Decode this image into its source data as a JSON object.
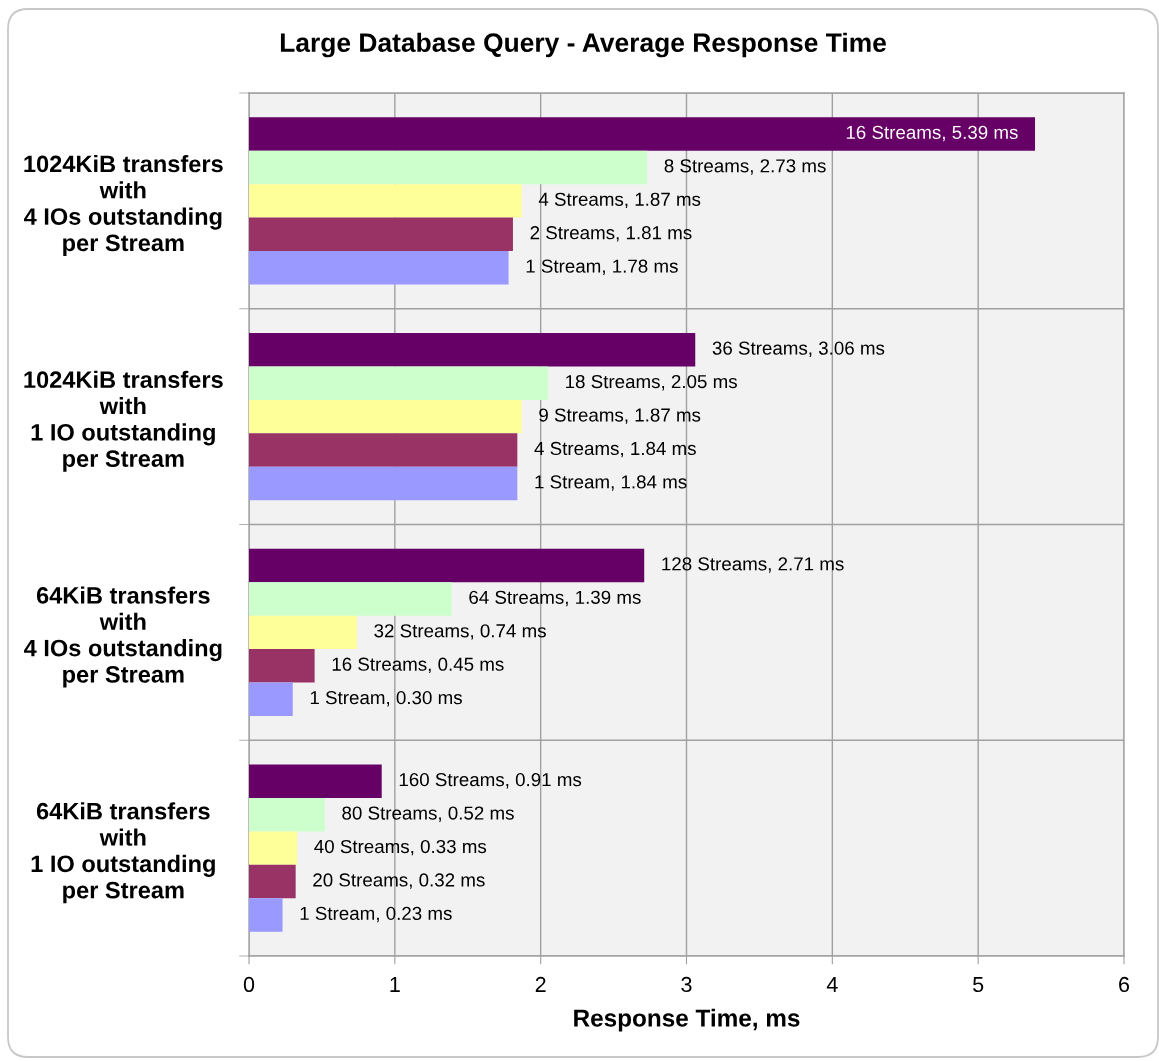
{
  "chart_data": {
    "type": "bar",
    "orientation": "horizontal",
    "title": "Large Database Query - Average Response Time",
    "xlabel": "Response Time, ms",
    "categories": [
      "1024KiB transfers\nwith\n4 IOs outstanding\nper Stream",
      "1024KiB transfers\nwith\n1 IO outstanding\nper Stream",
      "64KiB transfers\nwith\n4 IOs outstanding\nper Stream",
      "64KiB transfers\nwith\n1 IO outstanding\nper Stream"
    ],
    "series": [
      {
        "color": "#660066",
        "values": [
          5.39,
          3.06,
          2.71,
          0.91
        ],
        "value_labels": [
          "16 Streams, 5.39 ms",
          "36 Streams, 3.06 ms",
          "128 Streams, 2.71 ms",
          "160 Streams, 0.91 ms"
        ]
      },
      {
        "color": "#ccffcc",
        "values": [
          2.73,
          2.05,
          1.39,
          0.52
        ],
        "value_labels": [
          "8 Streams, 2.73 ms",
          "18 Streams, 2.05 ms",
          "64 Streams, 1.39 ms",
          "80 Streams, 0.52 ms"
        ]
      },
      {
        "color": "#ffff99",
        "values": [
          1.87,
          1.87,
          0.74,
          0.33
        ],
        "value_labels": [
          "4 Streams, 1.87 ms",
          "9 Streams, 1.87 ms",
          "32 Streams, 0.74 ms",
          "40 Streams, 0.33 ms"
        ]
      },
      {
        "color": "#993366",
        "values": [
          1.81,
          1.84,
          0.45,
          0.32
        ],
        "value_labels": [
          "2 Streams, 1.81 ms",
          "4 Streams, 1.84 ms",
          "16 Streams, 0.45 ms",
          "20 Streams, 0.32 ms"
        ]
      },
      {
        "color": "#9999ff",
        "values": [
          1.78,
          1.84,
          0.3,
          0.23
        ],
        "value_labels": [
          "1 Stream, 1.78 ms",
          "1 Stream, 1.84 ms",
          "1 Stream, 0.30 ms",
          "1 Stream, 0.23 ms"
        ]
      }
    ],
    "xlim": [
      0,
      6
    ],
    "xticks": [
      0,
      1,
      2,
      3,
      4,
      5,
      6
    ],
    "grid": true
  }
}
